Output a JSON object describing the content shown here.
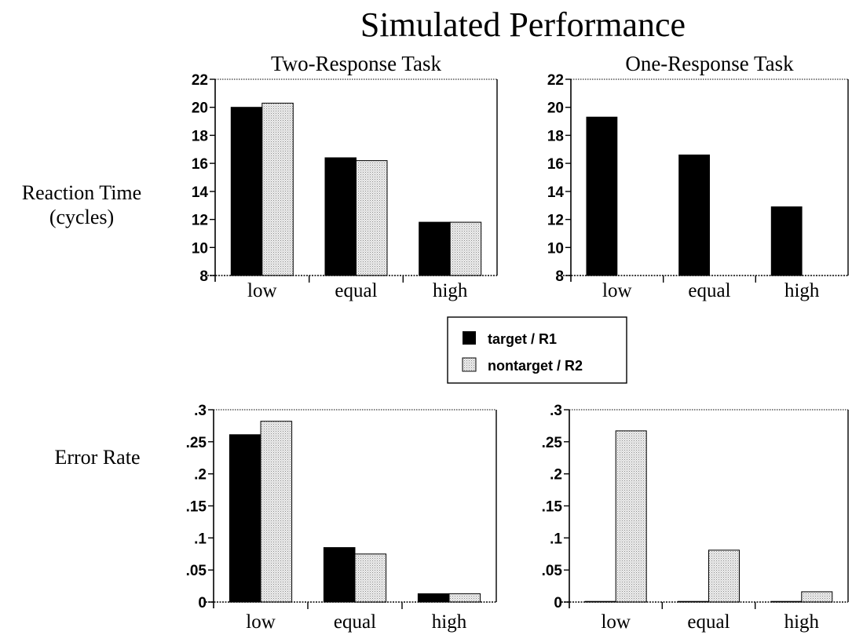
{
  "figure": {
    "title": "Simulated Performance",
    "row_labels": [
      {
        "lines": [
          "Reaction Time",
          "(cycles)"
        ]
      },
      {
        "lines": [
          "Error Rate"
        ]
      }
    ],
    "legend": {
      "items": [
        {
          "label": "target / R1",
          "color": "#000000",
          "pattern": "solid"
        },
        {
          "label": "nontarget / R2",
          "color": "#d9d9d9",
          "pattern": "dotted"
        }
      ]
    }
  },
  "chart_data": [
    {
      "type": "bar",
      "title": "Two-Response Task",
      "ylabel": "Reaction Time (cycles)",
      "categories": [
        "low",
        "equal",
        "high"
      ],
      "ylim": [
        8,
        22
      ],
      "yticks": [
        8,
        10,
        12,
        14,
        16,
        18,
        20,
        22
      ],
      "ytick_labels": [
        "8",
        "10",
        "12",
        "14",
        "16",
        "18",
        "20",
        "22"
      ],
      "series": [
        {
          "name": "target / R1",
          "color": "#000000",
          "values": [
            20.0,
            16.4,
            11.8
          ]
        },
        {
          "name": "nontarget / R2",
          "color": "#d9d9d9",
          "values": [
            20.3,
            16.2,
            11.8
          ]
        }
      ]
    },
    {
      "type": "bar",
      "title": "One-Response Task",
      "ylabel": "Reaction Time (cycles)",
      "categories": [
        "low",
        "equal",
        "high"
      ],
      "ylim": [
        8,
        22
      ],
      "yticks": [
        8,
        10,
        12,
        14,
        16,
        18,
        20,
        22
      ],
      "ytick_labels": [
        "8",
        "10",
        "12",
        "14",
        "16",
        "18",
        "20",
        "22"
      ],
      "series": [
        {
          "name": "target / R1",
          "color": "#000000",
          "values": [
            19.3,
            16.6,
            12.9
          ]
        }
      ]
    },
    {
      "type": "bar",
      "title": "",
      "ylabel": "Error Rate",
      "categories": [
        "low",
        "equal",
        "high"
      ],
      "ylim": [
        0,
        0.3
      ],
      "yticks": [
        0,
        0.05,
        0.1,
        0.15,
        0.2,
        0.25,
        0.3
      ],
      "ytick_labels": [
        "0",
        ".05",
        ".1",
        ".15",
        ".2",
        ".25",
        ".3"
      ],
      "series": [
        {
          "name": "target / R1",
          "color": "#000000",
          "values": [
            0.261,
            0.085,
            0.013
          ]
        },
        {
          "name": "nontarget / R2",
          "color": "#d9d9d9",
          "values": [
            0.282,
            0.075,
            0.013
          ]
        }
      ]
    },
    {
      "type": "bar",
      "title": "",
      "ylabel": "Error Rate",
      "categories": [
        "low",
        "equal",
        "high"
      ],
      "ylim": [
        0,
        0.3
      ],
      "yticks": [
        0,
        0.05,
        0.1,
        0.15,
        0.2,
        0.25,
        0.3
      ],
      "ytick_labels": [
        "0",
        ".05",
        ".1",
        ".15",
        ".2",
        ".25",
        ".3"
      ],
      "series": [
        {
          "name": "target / R1",
          "color": "#000000",
          "values": [
            0.001,
            0.001,
            0.001
          ]
        },
        {
          "name": "nontarget / R2",
          "color": "#d9d9d9",
          "values": [
            0.267,
            0.081,
            0.016
          ]
        }
      ]
    }
  ]
}
